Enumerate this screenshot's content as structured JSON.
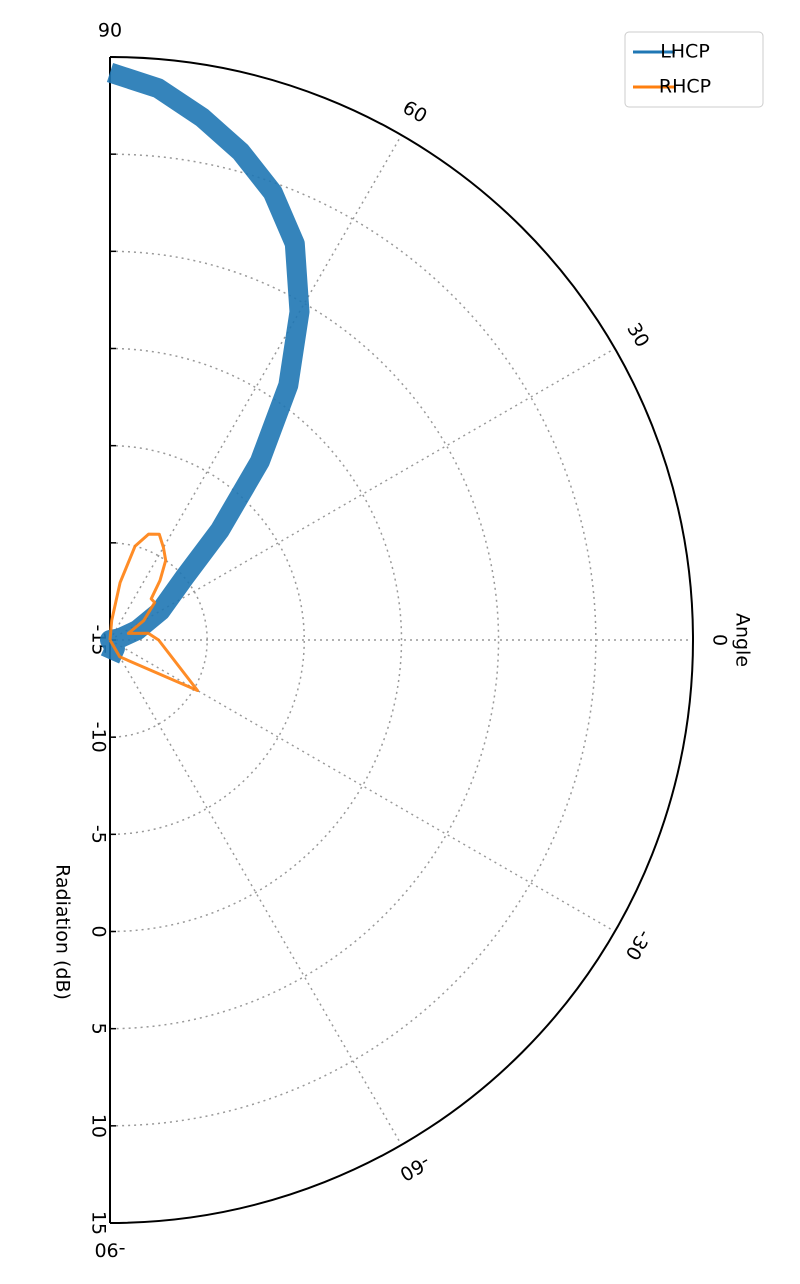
{
  "chart_data": {
    "type": "polar",
    "theta_label": "Angle",
    "r_label": "Radiation (dB)",
    "theta": [
      -90,
      -60,
      -30,
      0,
      10,
      20,
      30,
      40,
      45,
      50,
      55,
      60,
      65,
      70,
      75,
      80,
      85,
      90
    ],
    "series": [
      {
        "name": "LHCP",
        "color": "#1f77b4",
        "values": [
          -14,
          -14.5,
          -15,
          -15,
          -14.5,
          -13.5,
          -12,
          -10,
          -7,
          -3,
          1,
          4.5,
          7.5,
          9.5,
          11,
          12.3,
          13.5,
          14.2
        ]
      },
      {
        "name": "RHCP",
        "color": "#ff7f0e",
        "values": [
          -15,
          -14,
          -9.8,
          -12.5,
          -13,
          -14,
          -13,
          -12,
          -12,
          -11,
          -10,
          -9.5,
          -9,
          -9.2,
          -10,
          -12,
          -14,
          -15
        ]
      }
    ],
    "thetalim": [
      -90,
      90
    ],
    "thetaticks": [
      -90,
      -60,
      -30,
      0,
      30,
      60,
      90
    ],
    "rlim": [
      -15,
      15
    ],
    "rticks": [
      -15,
      -10,
      -5,
      0,
      5,
      10,
      15
    ],
    "grid": true,
    "legend": "upper right"
  }
}
